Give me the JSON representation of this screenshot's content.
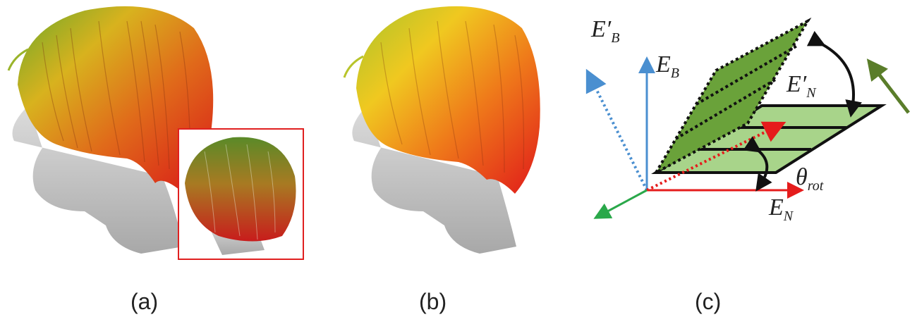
{
  "captions": {
    "a": "(a)",
    "b": "(b)",
    "c": "(c)"
  },
  "diagram": {
    "e_prime_b": {
      "main": "E′",
      "sub": "B"
    },
    "e_b": {
      "main": "E",
      "sub": "B"
    },
    "e_prime_n": {
      "main": "E′",
      "sub": "N"
    },
    "theta": {
      "main": "θ",
      "sub": "rot"
    },
    "e_n": {
      "main": "E",
      "sub": "N"
    }
  },
  "colors": {
    "hair_green": "#6aa82a",
    "hair_yellow": "#e8c21e",
    "hair_orange": "#e46a1a",
    "hair_red": "#d81818",
    "head_gray": "#c8c8c8",
    "inset_border": "#e02020",
    "axis_blue": "#4a8fd0",
    "axis_red": "#e51c1c",
    "axis_green": "#2aa84a",
    "plane_dark": "#6aa23a",
    "plane_light": "#a8d48a",
    "arrow_olive": "#5a7d2a"
  }
}
